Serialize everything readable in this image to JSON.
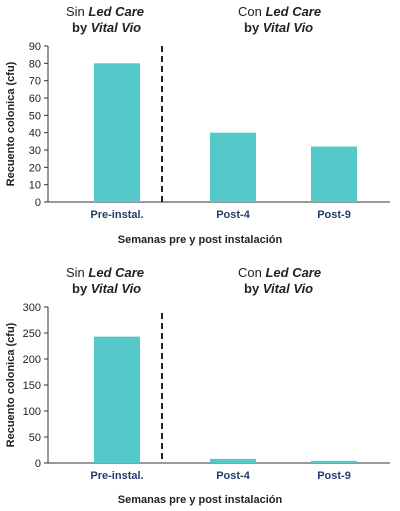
{
  "chart_data": [
    {
      "type": "bar",
      "groups": [
        {
          "pre": "Sin ",
          "em": "Led Care",
          "line2_pre": "by ",
          "line2_em": "Vital Vio"
        },
        {
          "pre": "Con ",
          "em": "Led Care",
          "line2_pre": "by ",
          "line2_em": "Vital Vio"
        }
      ],
      "categories": [
        "Pre-instal.",
        "Post-4",
        "Post-9"
      ],
      "values": [
        80,
        40,
        32
      ],
      "xlabel": "Semanas pre y post instalación",
      "ylabel": "Recuento colonica (cfu)",
      "ylim": [
        0,
        90
      ],
      "yticks": [
        0,
        10,
        20,
        30,
        40,
        50,
        60,
        70,
        80,
        90
      ],
      "bar_color": "#55c8c9",
      "divider": "dashed vertical line between Pre-instal. and Post-4"
    },
    {
      "type": "bar",
      "groups": [
        {
          "pre": "Sin ",
          "em": "Led Care",
          "line2_pre": "by ",
          "line2_em": "Vital Vio"
        },
        {
          "pre": "Con ",
          "em": "Led Care",
          "line2_pre": "by ",
          "line2_em": "Vital Vio"
        }
      ],
      "categories": [
        "Pre-instal.",
        "Post-4",
        "Post-9"
      ],
      "values": [
        243,
        8,
        4
      ],
      "xlabel": "Semanas pre y post instalación",
      "ylabel": "Recuento colonica (cfu)",
      "ylim": [
        0,
        300
      ],
      "yticks": [
        0,
        50,
        100,
        150,
        200,
        250,
        300
      ],
      "bar_color": "#55c8c9",
      "divider": "dashed vertical line between Pre-instal. and Post-4"
    }
  ]
}
